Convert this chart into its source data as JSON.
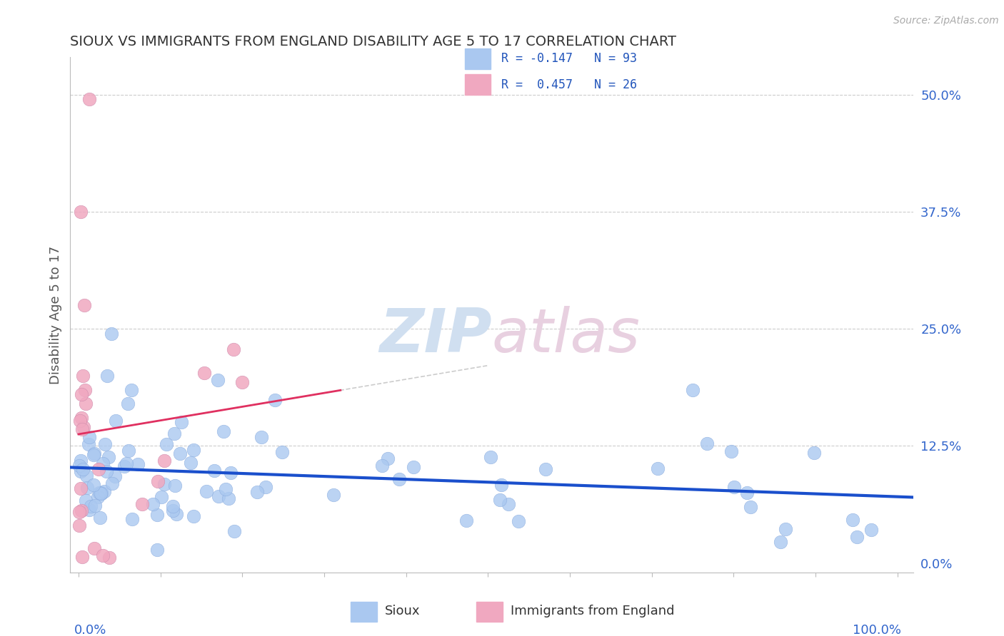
{
  "title": "SIOUX VS IMMIGRANTS FROM ENGLAND DISABILITY AGE 5 TO 17 CORRELATION CHART",
  "source": "Source: ZipAtlas.com",
  "ylabel": "Disability Age 5 to 17",
  "ytick_labels": [
    "0.0%",
    "12.5%",
    "25.0%",
    "37.5%",
    "50.0%"
  ],
  "ytick_values": [
    0.0,
    0.125,
    0.25,
    0.375,
    0.5
  ],
  "sioux_color": "#aac8f0",
  "england_color": "#f0a8c0",
  "sioux_line_color": "#1a4fcc",
  "england_line_color": "#e03060",
  "title_color": "#333333",
  "axis_label_color": "#3366cc",
  "legend_r_color": "#2255bb",
  "watermark_color": "#d0dff0",
  "watermark_color2": "#e8d0e0",
  "sioux_R": -0.147,
  "sioux_N": 93,
  "england_R": 0.457,
  "england_N": 26
}
